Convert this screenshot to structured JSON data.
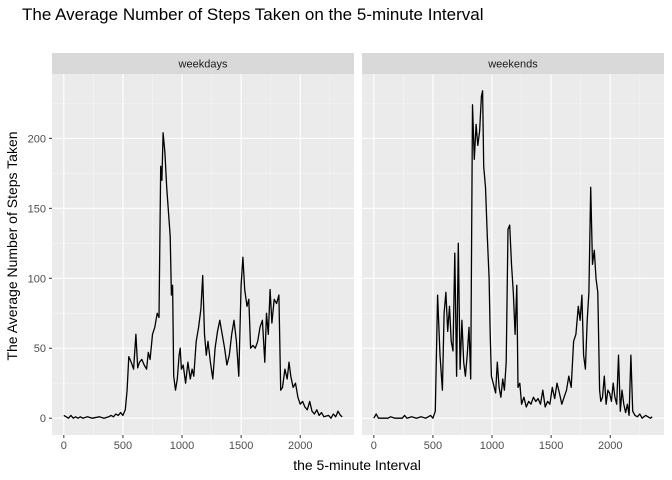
{
  "chart_data": {
    "type": "line",
    "title": "The Average Number of Steps Taken on the 5-minute Interval",
    "xlabel": "the 5-minute Interval",
    "ylabel": "The Average Number of Steps Taken",
    "xlim": [
      -100,
      2455
    ],
    "ylim": [
      -12,
      246
    ],
    "x_ticks": [
      0,
      500,
      1000,
      1500,
      2000
    ],
    "y_ticks": [
      0,
      50,
      100,
      150,
      200
    ],
    "x_tick_labels": [
      "0",
      "500",
      "1000",
      "1500",
      "2000"
    ],
    "y_tick_labels": [
      "0",
      "50",
      "100",
      "150",
      "200"
    ],
    "grid": true,
    "facets": [
      {
        "label": "weekdays",
        "points": [
          [
            0,
            2
          ],
          [
            20,
            1
          ],
          [
            40,
            0
          ],
          [
            60,
            2
          ],
          [
            80,
            0
          ],
          [
            100,
            1
          ],
          [
            120,
            0
          ],
          [
            140,
            1
          ],
          [
            160,
            0
          ],
          [
            200,
            1
          ],
          [
            240,
            0
          ],
          [
            300,
            1
          ],
          [
            340,
            0
          ],
          [
            380,
            1
          ],
          [
            400,
            2
          ],
          [
            420,
            1
          ],
          [
            440,
            3
          ],
          [
            460,
            2
          ],
          [
            480,
            4
          ],
          [
            500,
            2
          ],
          [
            520,
            6
          ],
          [
            535,
            20
          ],
          [
            550,
            44
          ],
          [
            570,
            40
          ],
          [
            590,
            35
          ],
          [
            610,
            60
          ],
          [
            625,
            36
          ],
          [
            640,
            40
          ],
          [
            660,
            42
          ],
          [
            680,
            38
          ],
          [
            700,
            35
          ],
          [
            715,
            47
          ],
          [
            730,
            42
          ],
          [
            750,
            60
          ],
          [
            770,
            65
          ],
          [
            790,
            75
          ],
          [
            805,
            72
          ],
          [
            820,
            180
          ],
          [
            830,
            170
          ],
          [
            840,
            204
          ],
          [
            855,
            190
          ],
          [
            870,
            165
          ],
          [
            900,
            130
          ],
          [
            910,
            88
          ],
          [
            920,
            95
          ],
          [
            930,
            30
          ],
          [
            945,
            20
          ],
          [
            960,
            28
          ],
          [
            975,
            45
          ],
          [
            985,
            50
          ],
          [
            995,
            35
          ],
          [
            1010,
            38
          ],
          [
            1030,
            25
          ],
          [
            1050,
            40
          ],
          [
            1070,
            28
          ],
          [
            1085,
            35
          ],
          [
            1100,
            30
          ],
          [
            1120,
            55
          ],
          [
            1140,
            65
          ],
          [
            1160,
            78
          ],
          [
            1175,
            102
          ],
          [
            1190,
            60
          ],
          [
            1205,
            45
          ],
          [
            1220,
            55
          ],
          [
            1240,
            40
          ],
          [
            1260,
            28
          ],
          [
            1280,
            50
          ],
          [
            1300,
            62
          ],
          [
            1320,
            70
          ],
          [
            1340,
            60
          ],
          [
            1360,
            50
          ],
          [
            1380,
            38
          ],
          [
            1400,
            45
          ],
          [
            1420,
            60
          ],
          [
            1440,
            70
          ],
          [
            1460,
            55
          ],
          [
            1480,
            30
          ],
          [
            1500,
            95
          ],
          [
            1515,
            115
          ],
          [
            1530,
            92
          ],
          [
            1550,
            80
          ],
          [
            1565,
            85
          ],
          [
            1580,
            50
          ],
          [
            1600,
            52
          ],
          [
            1620,
            50
          ],
          [
            1640,
            55
          ],
          [
            1660,
            65
          ],
          [
            1680,
            70
          ],
          [
            1700,
            40
          ],
          [
            1715,
            75
          ],
          [
            1730,
            60
          ],
          [
            1745,
            92
          ],
          [
            1760,
            68
          ],
          [
            1780,
            85
          ],
          [
            1800,
            82
          ],
          [
            1820,
            88
          ],
          [
            1835,
            20
          ],
          [
            1850,
            22
          ],
          [
            1870,
            35
          ],
          [
            1890,
            28
          ],
          [
            1905,
            40
          ],
          [
            1920,
            30
          ],
          [
            1940,
            22
          ],
          [
            1960,
            25
          ],
          [
            1980,
            15
          ],
          [
            2000,
            10
          ],
          [
            2020,
            12
          ],
          [
            2040,
            8
          ],
          [
            2060,
            6
          ],
          [
            2080,
            12
          ],
          [
            2100,
            5
          ],
          [
            2120,
            3
          ],
          [
            2140,
            6
          ],
          [
            2160,
            2
          ],
          [
            2180,
            4
          ],
          [
            2200,
            1
          ],
          [
            2240,
            2
          ],
          [
            2260,
            0
          ],
          [
            2280,
            3
          ],
          [
            2300,
            1
          ],
          [
            2320,
            5
          ],
          [
            2340,
            2
          ],
          [
            2355,
            1
          ]
        ]
      },
      {
        "label": "weekends",
        "points": [
          [
            0,
            0
          ],
          [
            20,
            3
          ],
          [
            40,
            0
          ],
          [
            80,
            0
          ],
          [
            120,
            0
          ],
          [
            140,
            1
          ],
          [
            180,
            0
          ],
          [
            240,
            0
          ],
          [
            260,
            2
          ],
          [
            280,
            0
          ],
          [
            320,
            1
          ],
          [
            360,
            0
          ],
          [
            400,
            1
          ],
          [
            440,
            0
          ],
          [
            480,
            2
          ],
          [
            500,
            0
          ],
          [
            520,
            5
          ],
          [
            540,
            88
          ],
          [
            560,
            45
          ],
          [
            580,
            20
          ],
          [
            595,
            75
          ],
          [
            610,
            90
          ],
          [
            625,
            62
          ],
          [
            640,
            80
          ],
          [
            655,
            55
          ],
          [
            670,
            48
          ],
          [
            685,
            118
          ],
          [
            700,
            30
          ],
          [
            715,
            125
          ],
          [
            730,
            35
          ],
          [
            745,
            70
          ],
          [
            760,
            40
          ],
          [
            775,
            30
          ],
          [
            790,
            45
          ],
          [
            805,
            65
          ],
          [
            820,
            28
          ],
          [
            835,
            224
          ],
          [
            850,
            185
          ],
          [
            865,
            210
          ],
          [
            880,
            195
          ],
          [
            895,
            205
          ],
          [
            910,
            230
          ],
          [
            920,
            234
          ],
          [
            930,
            180
          ],
          [
            945,
            165
          ],
          [
            960,
            130
          ],
          [
            975,
            100
          ],
          [
            985,
            60
          ],
          [
            995,
            30
          ],
          [
            1010,
            25
          ],
          [
            1030,
            18
          ],
          [
            1045,
            40
          ],
          [
            1060,
            22
          ],
          [
            1075,
            15
          ],
          [
            1090,
            28
          ],
          [
            1105,
            20
          ],
          [
            1120,
            40
          ],
          [
            1135,
            135
          ],
          [
            1150,
            138
          ],
          [
            1165,
            110
          ],
          [
            1180,
            90
          ],
          [
            1195,
            60
          ],
          [
            1210,
            95
          ],
          [
            1220,
            22
          ],
          [
            1235,
            25
          ],
          [
            1250,
            10
          ],
          [
            1270,
            15
          ],
          [
            1290,
            8
          ],
          [
            1310,
            12
          ],
          [
            1330,
            10
          ],
          [
            1350,
            15
          ],
          [
            1370,
            12
          ],
          [
            1390,
            14
          ],
          [
            1410,
            10
          ],
          [
            1430,
            20
          ],
          [
            1450,
            8
          ],
          [
            1470,
            12
          ],
          [
            1490,
            10
          ],
          [
            1510,
            22
          ],
          [
            1530,
            14
          ],
          [
            1550,
            25
          ],
          [
            1570,
            18
          ],
          [
            1590,
            10
          ],
          [
            1610,
            15
          ],
          [
            1630,
            20
          ],
          [
            1650,
            30
          ],
          [
            1670,
            22
          ],
          [
            1690,
            55
          ],
          [
            1710,
            60
          ],
          [
            1730,
            80
          ],
          [
            1745,
            70
          ],
          [
            1760,
            88
          ],
          [
            1775,
            45
          ],
          [
            1790,
            35
          ],
          [
            1805,
            70
          ],
          [
            1820,
            90
          ],
          [
            1835,
            165
          ],
          [
            1850,
            110
          ],
          [
            1865,
            120
          ],
          [
            1880,
            100
          ],
          [
            1895,
            90
          ],
          [
            1910,
            20
          ],
          [
            1920,
            12
          ],
          [
            1935,
            15
          ],
          [
            1950,
            30
          ],
          [
            1965,
            10
          ],
          [
            1980,
            20
          ],
          [
            1995,
            18
          ],
          [
            2010,
            12
          ],
          [
            2025,
            25
          ],
          [
            2040,
            15
          ],
          [
            2055,
            10
          ],
          [
            2070,
            45
          ],
          [
            2085,
            5
          ],
          [
            2100,
            20
          ],
          [
            2115,
            10
          ],
          [
            2130,
            4
          ],
          [
            2145,
            10
          ],
          [
            2160,
            2
          ],
          [
            2175,
            45
          ],
          [
            2190,
            5
          ],
          [
            2210,
            2
          ],
          [
            2230,
            1
          ],
          [
            2250,
            3
          ],
          [
            2270,
            0
          ],
          [
            2300,
            2
          ],
          [
            2320,
            1
          ],
          [
            2340,
            0
          ],
          [
            2355,
            1
          ]
        ]
      }
    ]
  }
}
